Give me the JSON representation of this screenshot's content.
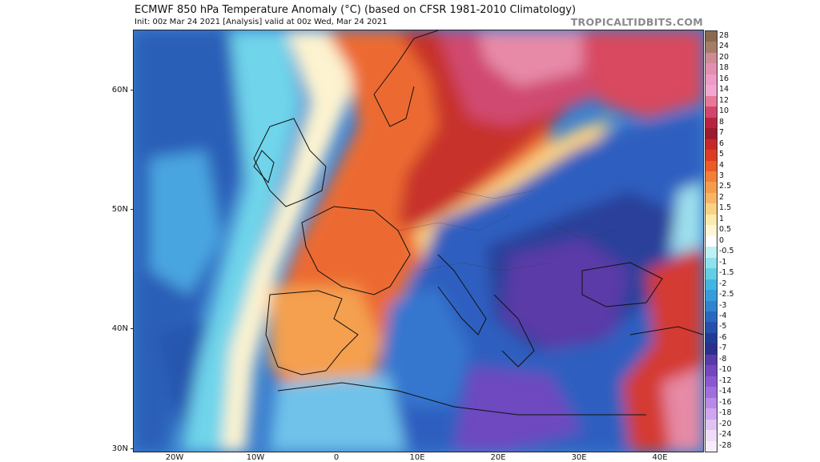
{
  "title": "ECMWF 850 hPa Temperature Anomaly (°C) (based on CFSR 1981-2010 Climatology)",
  "subtitle": "Init: 00z Mar 24 2021   [Analysis]   valid at 00z Wed, Mar 24 2021",
  "brand": "TROPICALTIDBITS.COM",
  "latitude_labels": [
    "60N",
    "50N",
    "40N",
    "30N"
  ],
  "longitude_labels": [
    "20W",
    "10W",
    "0",
    "10E",
    "20E",
    "30E",
    "40E"
  ],
  "colorbar": {
    "labels": [
      "28",
      "24",
      "20",
      "18",
      "16",
      "14",
      "12",
      "10",
      "8",
      "7",
      "6",
      "5",
      "4",
      "3",
      "2.5",
      "2",
      "1.5",
      "1",
      "0.5",
      "0",
      "-0.5",
      "-1",
      "-1.5",
      "-2",
      "-2.5",
      "-3",
      "-4",
      "-5",
      "-6",
      "-7",
      "-8",
      "-10",
      "-12",
      "-14",
      "-16",
      "-18",
      "-20",
      "-24",
      "-28"
    ],
    "colors": [
      "#8a6a4e",
      "#a57c66",
      "#d08a96",
      "#e48fb0",
      "#f09ac6",
      "#f2a6d0",
      "#e7789a",
      "#d2466b",
      "#b8243f",
      "#9d1b2e",
      "#c62828",
      "#de3b24",
      "#ec5a28",
      "#f17f3a",
      "#f59c4c",
      "#f8b665",
      "#fad283",
      "#fcebae",
      "#fff6d8",
      "#ffffff",
      "#bff0f5",
      "#8fe1ee",
      "#62cfe6",
      "#42b6e2",
      "#359ddb",
      "#2f83cf",
      "#2a68c0",
      "#2550ad",
      "#1f3c96",
      "#2c2f8c",
      "#5a3aa8",
      "#7446c0",
      "#8c58d2",
      "#a16ee0",
      "#b98ae8",
      "#cfa6ef",
      "#e0c2f3",
      "#efdcf8",
      "#f6ecfb"
    ]
  },
  "regions": [
    "atlantic-ocean",
    "iberia",
    "france",
    "british-isles",
    "scandinavia",
    "central-europe",
    "balkans",
    "italy",
    "mediterranean-sea",
    "black-sea",
    "north-africa",
    "middle-east"
  ]
}
